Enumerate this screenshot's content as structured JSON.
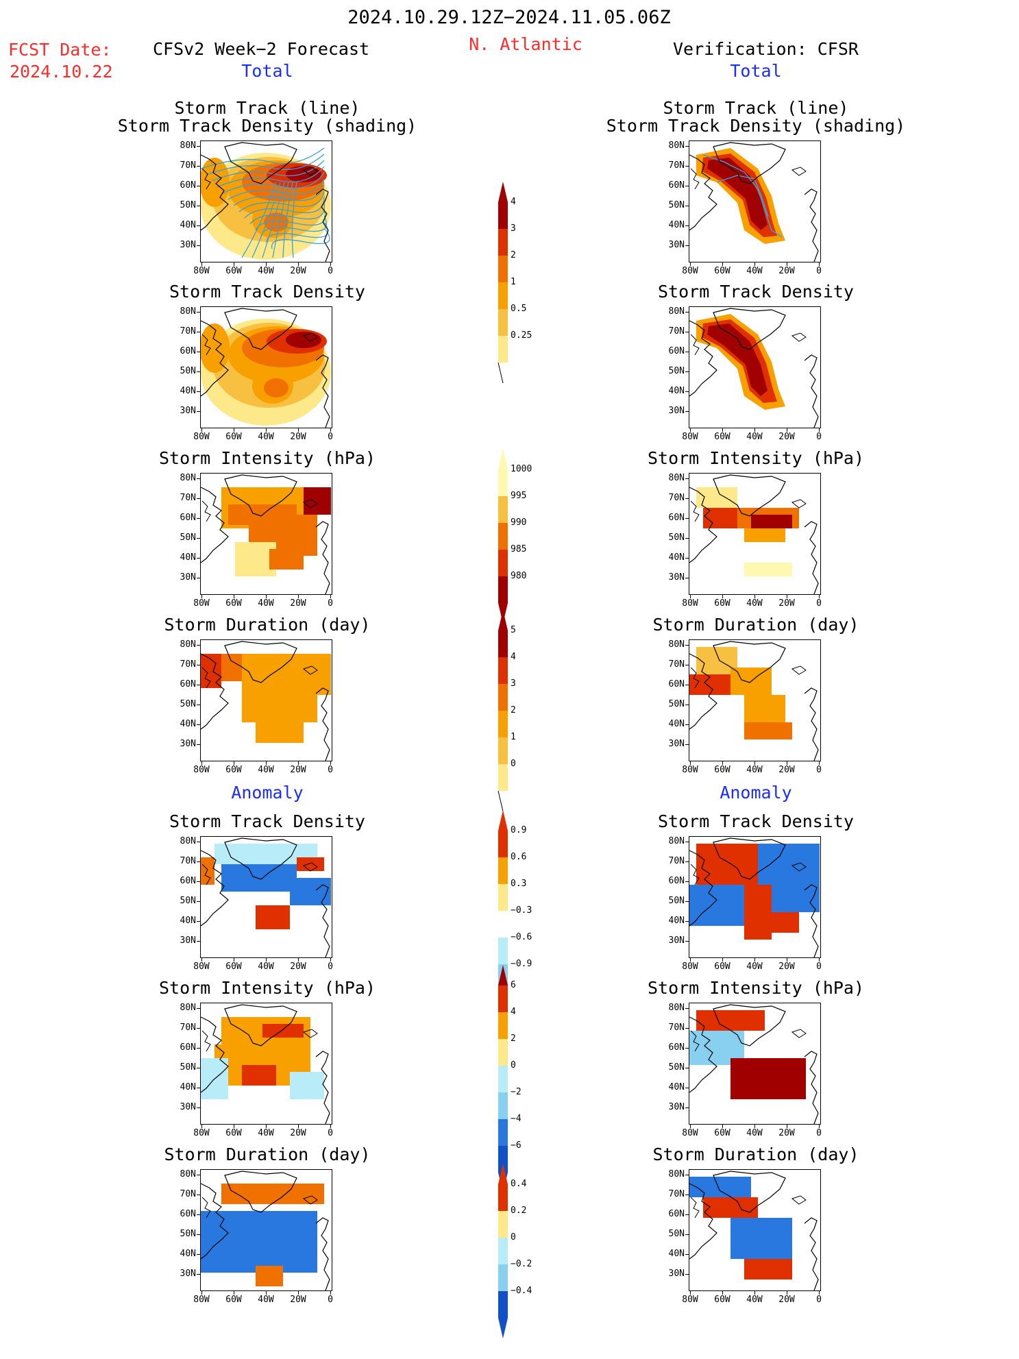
{
  "header": {
    "date_range": "2024.10.29.12Z−2024.11.05.06Z",
    "fcst_label": "FCST Date:",
    "fcst_date": "2024.10.22",
    "forecast_title": "CFSv2 Week−2 Forecast",
    "region": "N. Atlantic",
    "verification_title": "Verification: CFSR"
  },
  "sections": {
    "total": "Total",
    "anomaly": "Anomaly"
  },
  "panel_titles": {
    "track_line": "Storm Track (line)",
    "track_shading": "Storm Track Density (shading)",
    "density": "Storm Track Density",
    "intensity": "Storm Intensity (hPa)",
    "duration": "Storm Duration (day)"
  },
  "axes": {
    "lat_labels": [
      "80N",
      "70N",
      "60N",
      "50N",
      "40N",
      "30N"
    ],
    "lon_labels": [
      "80W",
      "60W",
      "40W",
      "20W",
      "0"
    ]
  },
  "colorbars": {
    "density_total": [
      "4",
      "3",
      "2",
      "1",
      "0.5",
      "0.25"
    ],
    "intensity_total": [
      "1000",
      "995",
      "990",
      "985",
      "980"
    ],
    "duration_total": [
      "5",
      "4",
      "3",
      "2",
      "1",
      "0"
    ],
    "density_anom": [
      "0.9",
      "0.6",
      "0.3",
      "−0.3",
      "−0.6",
      "−0.9"
    ],
    "intensity_anom": [
      "6",
      "4",
      "2",
      "0",
      "−2",
      "−4",
      "−6"
    ],
    "duration_anom": [
      "0.4",
      "0.2",
      "0",
      "−0.2",
      "−0.4"
    ]
  },
  "colors": {
    "warm": [
      "#fff8b0",
      "#fde88a",
      "#f8c040",
      "#f8a000",
      "#f07000",
      "#e03000",
      "#a00000"
    ],
    "cool": [
      "#b8ecf8",
      "#88d0f0",
      "#2878e0",
      "#1050c8"
    ],
    "track_line": "#3aa0d8",
    "land_line": "#000000"
  }
}
